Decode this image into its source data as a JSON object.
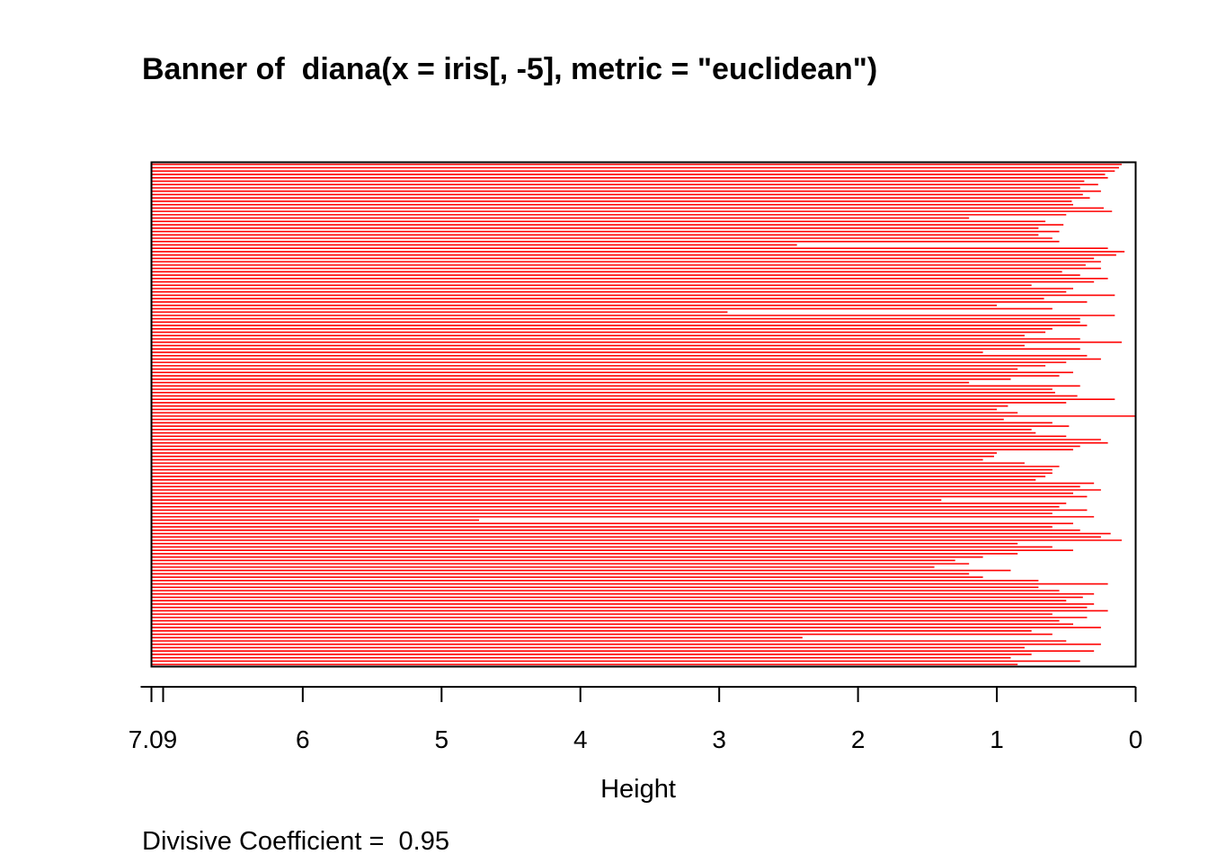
{
  "chart_data": {
    "type": "bar",
    "orientation": "horizontal-banner",
    "title": "Banner of  diana(x = iris[, -5], metric = \"euclidean\")",
    "xlabel": "Height",
    "xlim": [
      7.09,
      0
    ],
    "ticks": [
      "7.09",
      "6",
      "5",
      "4",
      "3",
      "2",
      "1",
      "0"
    ],
    "tick_values": [
      7.09,
      6,
      5,
      4,
      3,
      2,
      1,
      0
    ],
    "footnote": "Divisive Coefficient =  0.95",
    "bar_color": "#ff0000",
    "background_color": "#ffffff",
    "max_height": 7.09,
    "values": [
      0.1,
      0.12,
      0.15,
      0.22,
      0.2,
      0.37,
      0.27,
      0.4,
      0.25,
      0.38,
      0.33,
      0.46,
      0.45,
      0.23,
      0.17,
      0.5,
      1.2,
      0.65,
      0.52,
      0.7,
      0.55,
      0.7,
      0.6,
      0.55,
      2.44,
      0.2,
      0.08,
      0.14,
      0.3,
      0.25,
      0.36,
      0.25,
      0.53,
      0.4,
      0.2,
      0.3,
      0.75,
      0.45,
      0.5,
      0.15,
      0.66,
      0.35,
      1.0,
      0.6,
      2.94,
      0.15,
      0.4,
      0.4,
      0.35,
      0.6,
      0.65,
      0.8,
      0.4,
      0.1,
      0.8,
      0.4,
      1.1,
      0.35,
      0.25,
      0.5,
      0.65,
      0.85,
      0.45,
      0.55,
      0.9,
      1.2,
      0.4,
      0.6,
      0.58,
      0.42,
      0.15,
      0.5,
      0.92,
      1.0,
      0.85,
      0.0,
      0.95,
      0.6,
      0.48,
      0.75,
      0.72,
      0.5,
      0.25,
      0.2,
      0.4,
      0.45,
      1.0,
      1.02,
      1.1,
      0.8,
      0.55,
      0.6,
      0.6,
      0.65,
      0.72,
      0.3,
      0.4,
      0.25,
      0.45,
      0.35,
      1.4,
      0.5,
      0.55,
      0.35,
      0.6,
      0.3,
      4.73,
      0.45,
      0.6,
      0.4,
      0.18,
      0.25,
      0.1,
      0.85,
      0.6,
      0.45,
      0.85,
      1.1,
      1.3,
      1.2,
      1.45,
      0.9,
      1.2,
      1.1,
      0.7,
      0.2,
      0.7,
      0.55,
      0.3,
      0.38,
      0.5,
      0.3,
      0.35,
      0.2,
      0.6,
      0.35,
      0.55,
      0.45,
      0.25,
      0.75,
      0.6,
      2.4,
      0.5,
      0.25,
      0.8,
      0.3,
      0.75,
      0.9,
      0.4,
      0.85
    ]
  }
}
